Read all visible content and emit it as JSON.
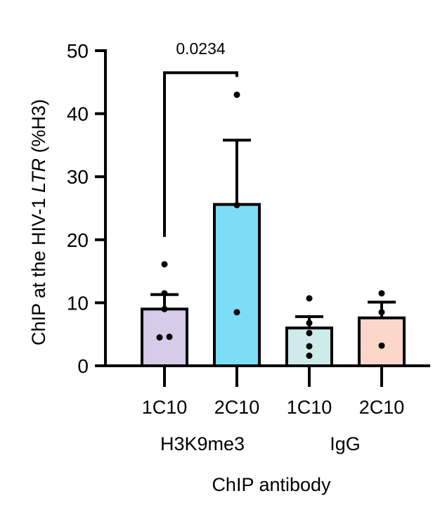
{
  "chart_data": {
    "type": "bar",
    "title": "",
    "ylabel_prefix": "ChIP at the HIV-1 ",
    "ylabel_italic": "LTR",
    "ylabel_suffix": " (%H3)",
    "xlabel": "ChIP antibody",
    "ylim": [
      0,
      50
    ],
    "yticks": [
      "0",
      "10",
      "20",
      "30",
      "40",
      "50"
    ],
    "categories": [
      "1C10",
      "2C10",
      "1C10",
      "2C10"
    ],
    "groups": [
      "H3K9me3",
      "IgG"
    ],
    "bars": [
      {
        "group": "H3K9me3",
        "label": "1C10",
        "mean": 9.0,
        "sem": 2.3,
        "color": "#d6cbe9",
        "points": [
          4.5,
          4.6,
          9.0,
          11.5,
          16.1
        ]
      },
      {
        "group": "H3K9me3",
        "label": "2C10",
        "mean": 25.6,
        "sem": 10.2,
        "color": "#7ddcf6",
        "points": [
          8.5,
          25.5,
          43.0
        ]
      },
      {
        "group": "IgG",
        "label": "1C10",
        "mean": 6.0,
        "sem": 1.8,
        "color": "#cfeaea",
        "points": [
          1.6,
          3.1,
          5.2,
          6.8,
          10.7
        ]
      },
      {
        "group": "IgG",
        "label": "2C10",
        "mean": 7.6,
        "sem": 2.5,
        "color": "#fad7c8",
        "points": [
          3.2,
          8.5,
          11.5
        ]
      }
    ],
    "annotation": {
      "text": "0.0234",
      "from_bar": 0,
      "to_bar": 1,
      "y": 46.5
    }
  }
}
